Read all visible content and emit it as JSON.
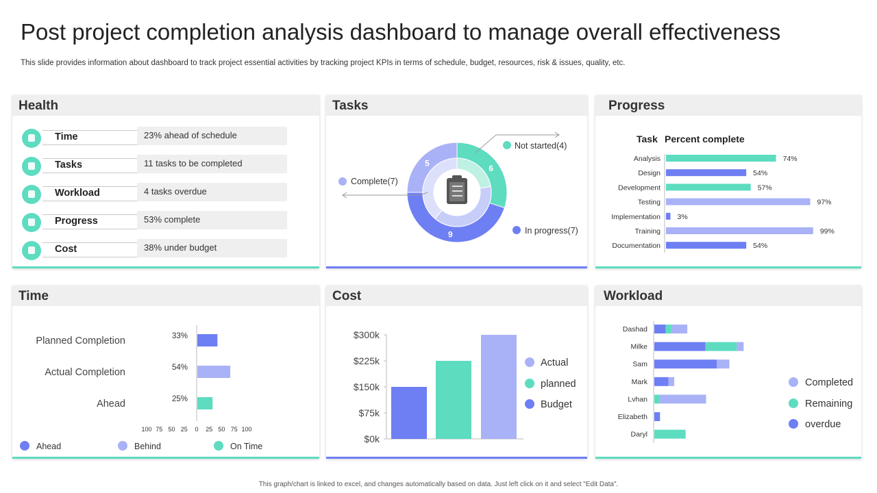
{
  "title": "Post project completion analysis dashboard to manage overall effectiveness",
  "subtitle": "This slide provides information about dashboard to track project essential activities by tracking project KPIs in terms of schedule, budget, resources, risk & issues, quality, etc.",
  "footer": "This graph/chart is linked to excel, and changes automatically based on data. Just left click on it and select \"Edit Data\".",
  "colors": {
    "teal": "#5ddcc0",
    "blue": "#6e7ff3",
    "lavender": "#a9b2f6",
    "header_bg": "#efefef"
  },
  "health": {
    "title": "Health",
    "rows": [
      {
        "label": "Time",
        "value": "23% ahead of schedule",
        "icon": "clock-icon"
      },
      {
        "label": "Tasks",
        "value": "11 tasks to be completed",
        "icon": "tasks-icon"
      },
      {
        "label": "Workload",
        "value": "4 tasks overdue",
        "icon": "people-icon"
      },
      {
        "label": "Progress",
        "value": "53% complete",
        "icon": "chart-icon"
      },
      {
        "label": "Cost",
        "value": "38% under budget",
        "icon": "money-icon"
      }
    ]
  },
  "tasks": {
    "title": "Tasks",
    "labels": {
      "not_started": "Not started(4)",
      "complete": "Complete(7)",
      "in_progress": "In progress(7)"
    }
  },
  "progress": {
    "title": "Progress",
    "col_task": "Task",
    "col_pct": "Percent complete"
  },
  "time": {
    "title": "Time"
  },
  "cost": {
    "title": "Cost"
  },
  "workload": {
    "title": "Workload"
  },
  "chart_data": [
    {
      "id": "tasks_donut",
      "type": "pie",
      "title": "Tasks",
      "outer_ring": [
        {
          "name": "Not started",
          "value": 6,
          "color": "#5ddcc0"
        },
        {
          "name": "In progress",
          "value": 9,
          "color": "#6e7ff3"
        },
        {
          "name": "Complete",
          "value": 5,
          "color": "#a9b2f6"
        }
      ],
      "inner_ring": [
        {
          "name": "Not started",
          "value": 4,
          "color": "#bff0e4"
        },
        {
          "name": "In progress",
          "value": 7,
          "color": "#c7cdf9"
        },
        {
          "name": "Complete",
          "value": 7,
          "color": "#dde0fb"
        }
      ]
    },
    {
      "id": "progress",
      "type": "bar",
      "orientation": "horizontal",
      "categories": [
        "Analysis",
        "Design",
        "Development",
        "Testing",
        "Implementation",
        "Training",
        "Documentation"
      ],
      "values": [
        74,
        54,
        57,
        97,
        3,
        99,
        54
      ],
      "value_labels": [
        "74%",
        "54%",
        "57%",
        "97%",
        "3%",
        "99%",
        "54%"
      ],
      "colors": [
        "#5ddcc0",
        "#6e7ff3",
        "#5ddcc0",
        "#a9b2f6",
        "#6e7ff3",
        "#a9b2f6",
        "#6e7ff3"
      ],
      "xlim": [
        0,
        100
      ]
    },
    {
      "id": "time",
      "type": "bar",
      "orientation": "horizontal",
      "categories": [
        "Planned Completion",
        "Actual Completion",
        "Ahead"
      ],
      "values": [
        33,
        54,
        25
      ],
      "value_labels": [
        "33%",
        "54%",
        "25%"
      ],
      "colors": [
        "#6e7ff3",
        "#a9b2f6",
        "#5ddcc0"
      ],
      "x_ticks": [
        "100",
        "75",
        "50",
        "25",
        "0",
        "25",
        "50",
        "75",
        "100"
      ],
      "legend": [
        {
          "name": "Ahead",
          "color": "#6e7ff3"
        },
        {
          "name": "Behind",
          "color": "#a9b2f6"
        },
        {
          "name": "On Time",
          "color": "#5ddcc0"
        }
      ]
    },
    {
      "id": "cost",
      "type": "bar",
      "categories": [
        "Budget",
        "planned",
        "Actual"
      ],
      "values": [
        150,
        225,
        300
      ],
      "colors": [
        "#6e7ff3",
        "#5ddcc0",
        "#a9b2f6"
      ],
      "y_ticks": [
        "$0k",
        "$75k",
        "$150k",
        "$225k",
        "$300k"
      ],
      "ylim": [
        0,
        300
      ],
      "legend": [
        {
          "name": "Actual",
          "color": "#a9b2f6"
        },
        {
          "name": "planned",
          "color": "#5ddcc0"
        },
        {
          "name": "Budget",
          "color": "#6e7ff3"
        }
      ]
    },
    {
      "id": "workload",
      "type": "bar",
      "orientation": "horizontal",
      "stacked": true,
      "categories": [
        "Dashad",
        "Milke",
        "Sam",
        "Mark",
        "Lvhan",
        "Elizabeth",
        "Daryl"
      ],
      "series": [
        {
          "name": "overdue",
          "color": "#6e7ff3",
          "values": [
            2,
            9,
            11,
            2.5,
            0,
            1,
            0
          ]
        },
        {
          "name": "Remaining",
          "color": "#5ddcc0",
          "values": [
            1,
            5.5,
            0,
            0,
            1,
            0,
            5.5
          ]
        },
        {
          "name": "Completed",
          "color": "#a9b2f6",
          "values": [
            2.8,
            1.2,
            2.2,
            1,
            8.1,
            0,
            0
          ]
        }
      ],
      "legend": [
        {
          "name": "Completed",
          "color": "#a9b2f6"
        },
        {
          "name": "Remaining",
          "color": "#5ddcc0"
        },
        {
          "name": "overdue",
          "color": "#6e7ff3"
        }
      ]
    }
  ]
}
